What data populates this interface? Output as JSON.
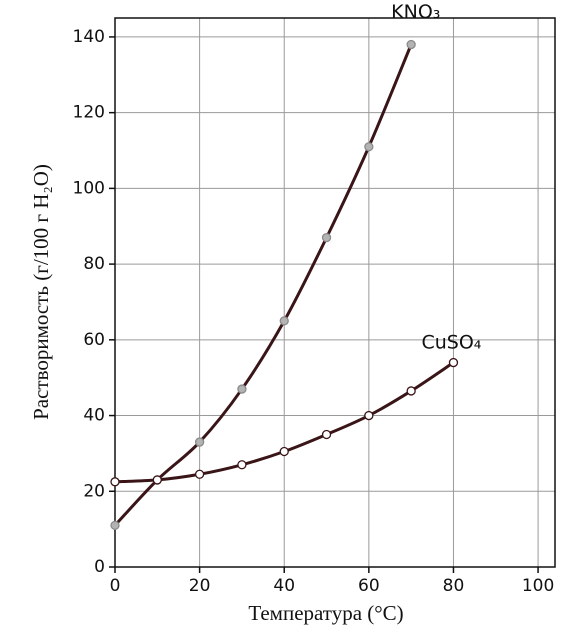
{
  "chart_data": {
    "type": "line",
    "x_label": "Температура (°C)",
    "y_label": "Растворимость (г/100 г H₂O)",
    "x": [
      0,
      10,
      20,
      30,
      40,
      50,
      60,
      70,
      80
    ],
    "series": [
      {
        "name": "KNO₃",
        "color": "#3a1518",
        "marker_fill": "#b3b3b3",
        "values": [
          11,
          23,
          33,
          47,
          65,
          87,
          111,
          138,
          null
        ]
      },
      {
        "name": "CuSO₄",
        "color": "#3a1518",
        "marker_fill": "#ffffff",
        "values": [
          22.5,
          23,
          24.5,
          27,
          30.5,
          35,
          40,
          46.5,
          54
        ]
      }
    ],
    "xlim": [
      0,
      104
    ],
    "ylim": [
      0,
      145
    ],
    "xticks": [
      0,
      20,
      40,
      60,
      80,
      100
    ],
    "yticks": [
      0,
      20,
      40,
      60,
      80,
      100,
      120,
      140
    ],
    "grid": true
  }
}
